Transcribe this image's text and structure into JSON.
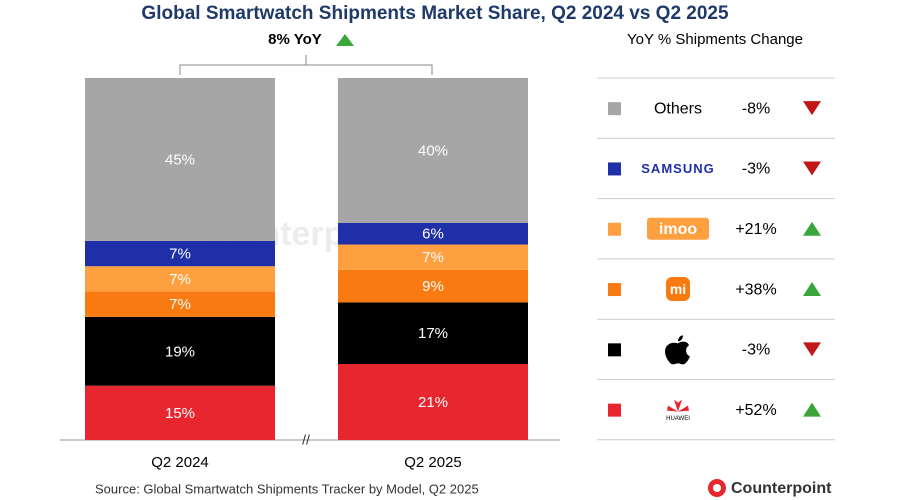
{
  "chart_data": {
    "type": "stacked_bar",
    "title": "Global Smartwatch Shipments Market Share, Q2 2024 vs Q2 2025",
    "annotation": "8% YoY",
    "legend_title": "YoY % Shipments Change",
    "axis_break": "//",
    "categories": [
      "Q2 2024",
      "Q2 2025"
    ],
    "ylim": [
      0,
      100
    ],
    "series": [
      {
        "name": "HUAWEI",
        "color": "#e8262f",
        "values": [
          15,
          21
        ],
        "value_labels": [
          "15%",
          "21%"
        ],
        "yoy": 52,
        "yoy_label": "+52%"
      },
      {
        "name": null,
        "color": "#000000",
        "values": [
          19,
          17
        ],
        "value_labels": [
          "19%",
          "17%"
        ],
        "yoy": -3,
        "yoy_label": "-3%"
      },
      {
        "name": "mi",
        "color": "#f97a10",
        "values": [
          7,
          9
        ],
        "value_labels": [
          "7%",
          "9%"
        ],
        "yoy": 38,
        "yoy_label": "+38%"
      },
      {
        "name": "imoo",
        "color": "#ffa040",
        "values": [
          7,
          7
        ],
        "value_labels": [
          "7%",
          "7%"
        ],
        "yoy": 21,
        "yoy_label": "+21%"
      },
      {
        "name": "SAMSUNG",
        "color": "#1f2fa8",
        "values": [
          7,
          6
        ],
        "value_labels": [
          "7%",
          "6%"
        ],
        "yoy": -3,
        "yoy_label": "-3%"
      },
      {
        "name": "Others",
        "color": "#a6a6a6",
        "values": [
          45,
          40
        ],
        "value_labels": [
          "45%",
          "40%"
        ],
        "yoy": -8,
        "yoy_label": "-8%"
      }
    ],
    "source": "Source: Global Smartwatch Shipments Tracker by Model, Q2 2025",
    "brand": "Counterpoint"
  }
}
